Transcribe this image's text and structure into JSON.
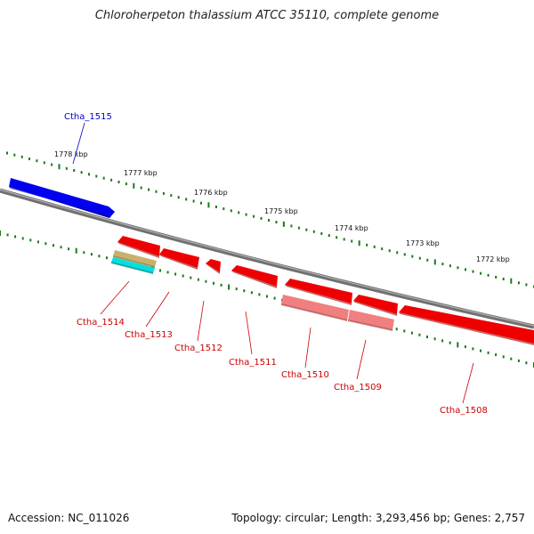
{
  "title": "Chloroherpeton thalassium ATCC 35110, complete genome",
  "footer": {
    "accession": "Accession: NC_011026",
    "summary": "Topology: circular; Length: 3,293,456 bp; Genes: 2,757"
  },
  "colors": {
    "backbone": "#808080",
    "forward_gene": "#0000ee",
    "reverse_gene": "#ee0000",
    "reverse_pseudo": "#f08080",
    "rna_tan": "#c8b070",
    "rna_cyan": "#00e0e0",
    "tick": "#1a7a1a"
  },
  "ticks": [
    {
      "label": "1778 kbp"
    },
    {
      "label": "1777 kbp"
    },
    {
      "label": "1776 kbp"
    },
    {
      "label": "1775 kbp"
    },
    {
      "label": "1774 kbp"
    },
    {
      "label": "1773 kbp"
    },
    {
      "label": "1772 kbp"
    }
  ],
  "genes": [
    {
      "label": "Ctha_1515",
      "strand": "forward"
    },
    {
      "label": "Ctha_1514",
      "strand": "reverse"
    },
    {
      "label": "Ctha_1513",
      "strand": "reverse"
    },
    {
      "label": "Ctha_1512",
      "strand": "reverse"
    },
    {
      "label": "Ctha_1511",
      "strand": "reverse"
    },
    {
      "label": "Ctha_1510",
      "strand": "reverse"
    },
    {
      "label": "Ctha_1509",
      "strand": "reverse"
    },
    {
      "label": "Ctha_1508",
      "strand": "reverse"
    }
  ]
}
